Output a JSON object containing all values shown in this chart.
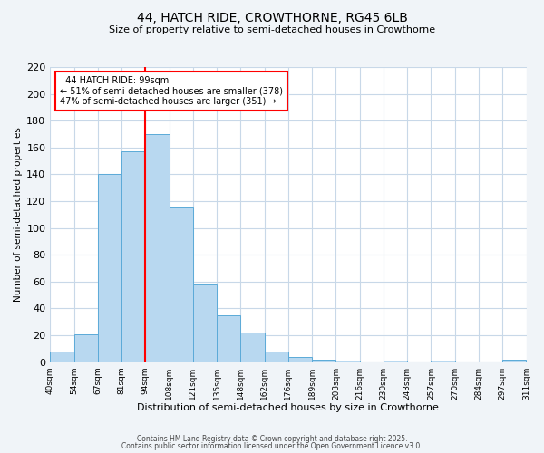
{
  "title": "44, HATCH RIDE, CROWTHORNE, RG45 6LB",
  "subtitle": "Size of property relative to semi-detached houses in Crowthorne",
  "xlabel": "Distribution of semi-detached houses by size in Crowthorne",
  "ylabel": "Number of semi-detached properties",
  "bar_values": [
    8,
    21,
    140,
    157,
    170,
    115,
    58,
    35,
    22,
    8,
    4,
    2,
    1,
    0,
    1,
    0,
    1,
    0,
    0,
    2
  ],
  "bin_labels": [
    "40sqm",
    "54sqm",
    "67sqm",
    "81sqm",
    "94sqm",
    "108sqm",
    "121sqm",
    "135sqm",
    "148sqm",
    "162sqm",
    "176sqm",
    "189sqm",
    "203sqm",
    "216sqm",
    "230sqm",
    "243sqm",
    "257sqm",
    "270sqm",
    "284sqm",
    "297sqm",
    "311sqm"
  ],
  "bar_color": "#b8d8f0",
  "bar_edge_color": "#5baad8",
  "vline_x_index": 4,
  "vline_color": "red",
  "annotation_title": "44 HATCH RIDE: 99sqm",
  "annotation_line1": "← 51% of semi-detached houses are smaller (378)",
  "annotation_line2": "47% of semi-detached houses are larger (351) →",
  "annotation_box_color": "red",
  "ylim": [
    0,
    220
  ],
  "yticks": [
    0,
    20,
    40,
    60,
    80,
    100,
    120,
    140,
    160,
    180,
    200,
    220
  ],
  "footer1": "Contains HM Land Registry data © Crown copyright and database right 2025.",
  "footer2": "Contains public sector information licensed under the Open Government Licence v3.0.",
  "bg_color": "#f0f4f8",
  "plot_bg_color": "#ffffff",
  "grid_color": "#c8d8e8"
}
